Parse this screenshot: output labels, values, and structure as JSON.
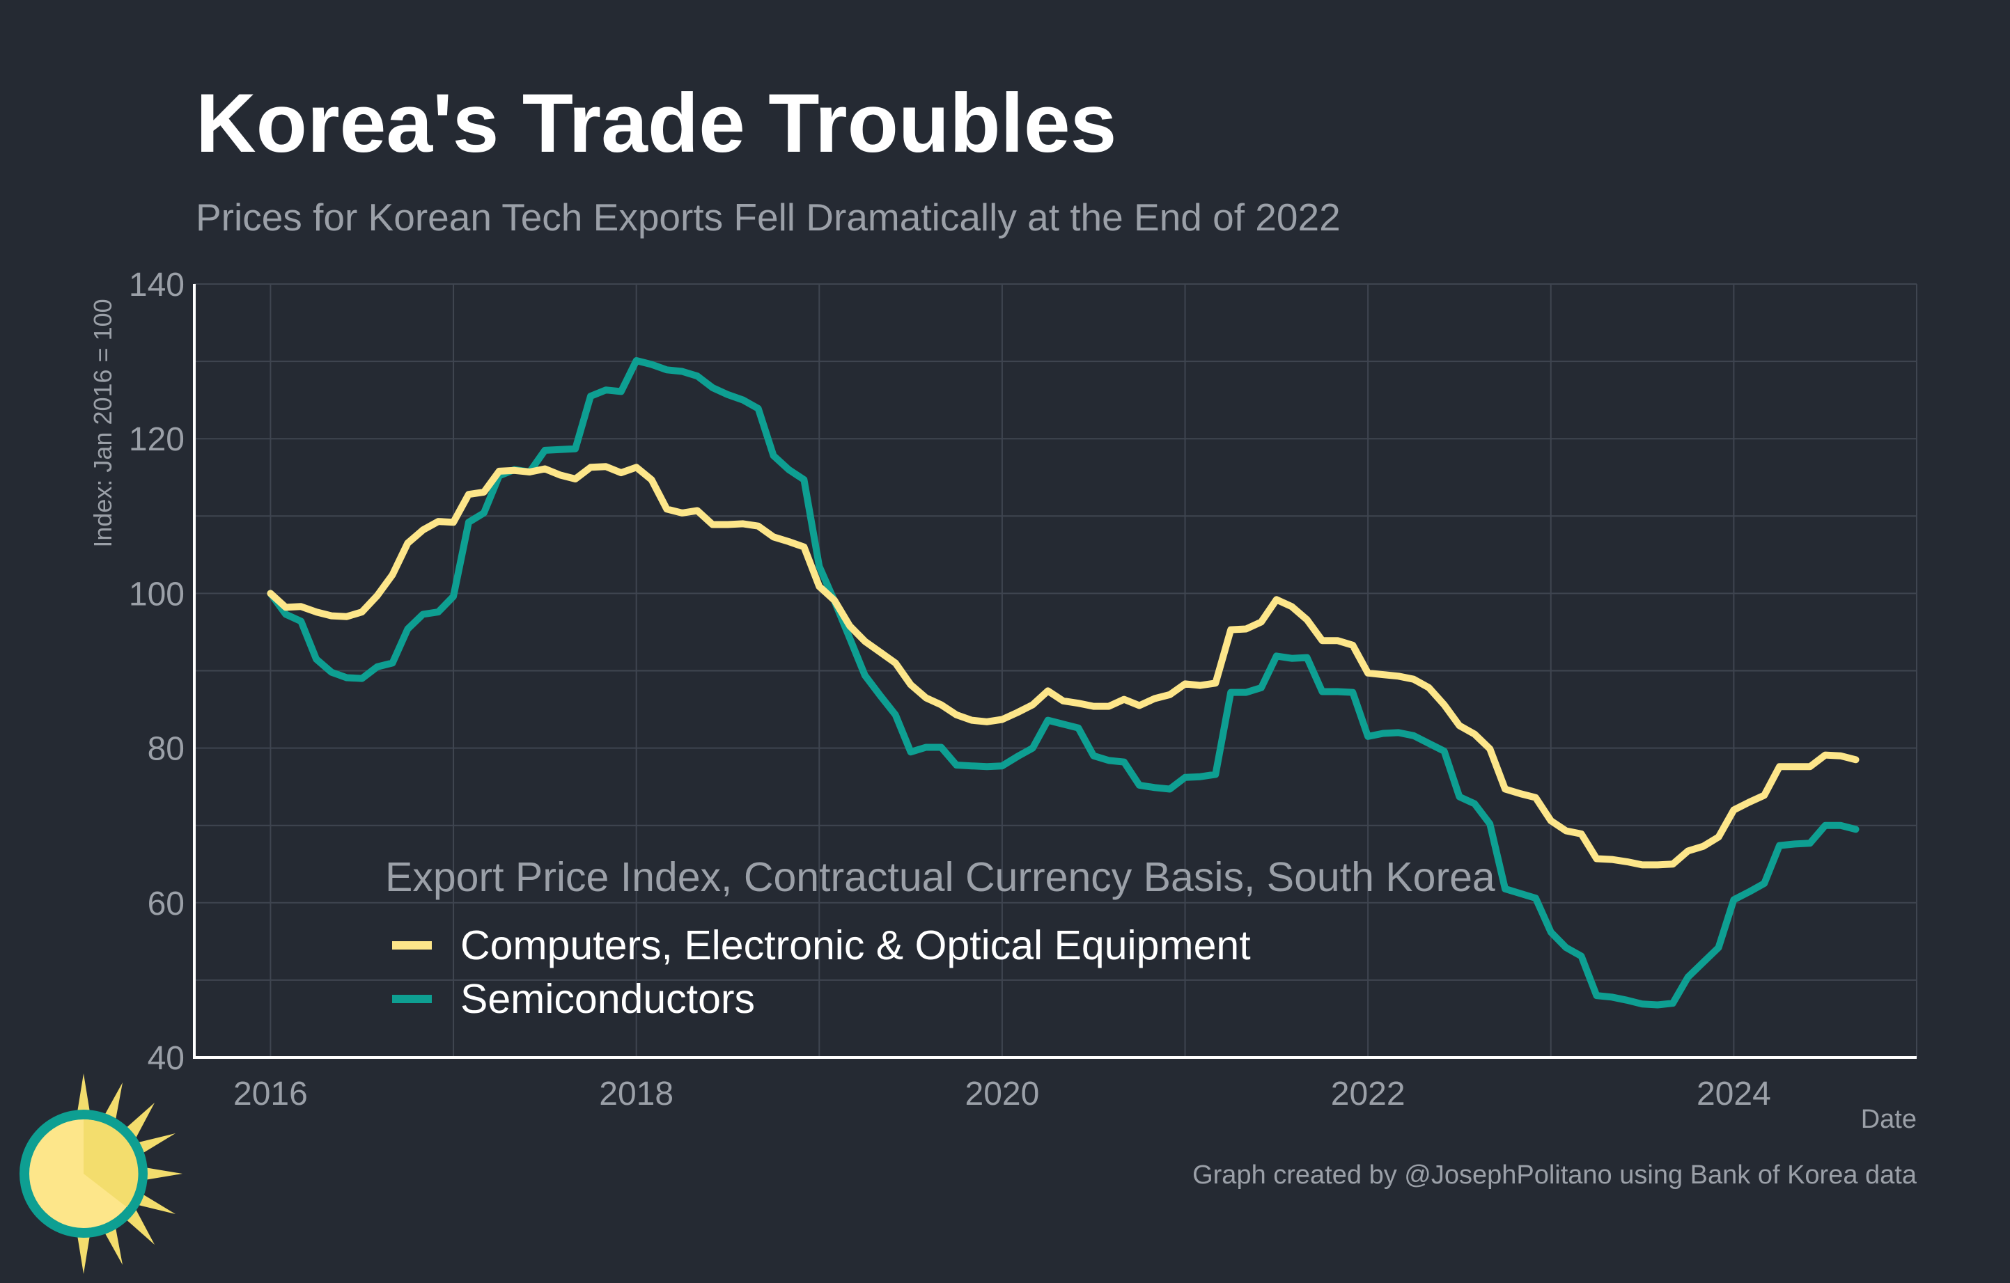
{
  "title": "Korea's Trade Troubles",
  "subtitle": "Prices for Korean Tech Exports Fell Dramatically at the End of 2022",
  "footer": {
    "date_label": "Date",
    "credit": "Graph created by @JosephPolitano using Bank of Korea data"
  },
  "colors": {
    "background": "#252a33",
    "grid": "#3f4550",
    "text_muted": "#9ba0a8",
    "computers": "#fde68a",
    "semiconductors": "#0e9f92"
  },
  "chart_data": {
    "type": "line",
    "title": "Korea's Trade Troubles",
    "subtitle": "Prices for Korean Tech Exports Fell Dramatically at the End of 2022",
    "xlabel": "Date",
    "ylabel": "Index: Jan 2016 = 100",
    "xlim": [
      "2015-08",
      "2025-01"
    ],
    "ylim": [
      40,
      140
    ],
    "x_ticks": [
      "2016",
      "2018",
      "2020",
      "2022",
      "2024"
    ],
    "y_ticks": [
      40,
      60,
      80,
      100,
      120,
      140
    ],
    "grid": true,
    "legend": {
      "title": "Export Price Index, Contractual Currency Basis, South Korea",
      "placement": "bottom-left"
    },
    "x": [
      "2016-01",
      "2016-02",
      "2016-03",
      "2016-04",
      "2016-05",
      "2016-06",
      "2016-07",
      "2016-08",
      "2016-09",
      "2016-10",
      "2016-11",
      "2016-12",
      "2017-01",
      "2017-02",
      "2017-03",
      "2017-04",
      "2017-05",
      "2017-06",
      "2017-07",
      "2017-08",
      "2017-09",
      "2017-10",
      "2017-11",
      "2017-12",
      "2018-01",
      "2018-02",
      "2018-03",
      "2018-04",
      "2018-05",
      "2018-06",
      "2018-07",
      "2018-08",
      "2018-09",
      "2018-10",
      "2018-11",
      "2018-12",
      "2019-01",
      "2019-02",
      "2019-03",
      "2019-04",
      "2019-05",
      "2019-06",
      "2019-07",
      "2019-08",
      "2019-09",
      "2019-10",
      "2019-11",
      "2019-12",
      "2020-01",
      "2020-02",
      "2020-03",
      "2020-04",
      "2020-05",
      "2020-06",
      "2020-07",
      "2020-08",
      "2020-09",
      "2020-10",
      "2020-11",
      "2020-12",
      "2021-01",
      "2021-02",
      "2021-03",
      "2021-04",
      "2021-05",
      "2021-06",
      "2021-07",
      "2021-08",
      "2021-09",
      "2021-10",
      "2021-11",
      "2021-12",
      "2022-01",
      "2022-02",
      "2022-03",
      "2022-04",
      "2022-05",
      "2022-06",
      "2022-07",
      "2022-08",
      "2022-09",
      "2022-10",
      "2022-11",
      "2022-12",
      "2023-01",
      "2023-02",
      "2023-03",
      "2023-04",
      "2023-05",
      "2023-06",
      "2023-07",
      "2023-08",
      "2023-09",
      "2023-10",
      "2023-11",
      "2023-12",
      "2024-01",
      "2024-02",
      "2024-03",
      "2024-04",
      "2024-05",
      "2024-06",
      "2024-07",
      "2024-08",
      "2024-09"
    ],
    "series": [
      {
        "name": "Computers, Electronic & Optical Equipment",
        "color": "#fde68a",
        "values": [
          100,
          98.2,
          98.3,
          97.6,
          97.1,
          97,
          97.6,
          99.7,
          102.4,
          106.5,
          108.2,
          109.3,
          109.2,
          112.8,
          113.1,
          115.8,
          115.9,
          115.7,
          116.1,
          115.3,
          114.8,
          116.3,
          116.4,
          115.6,
          116.3,
          114.7,
          110.9,
          110.4,
          110.7,
          108.9,
          108.9,
          109,
          108.7,
          107.3,
          106.7,
          106,
          100.9,
          99.1,
          95.8,
          93.8,
          92.4,
          91,
          88.2,
          86.5,
          85.6,
          84.3,
          83.6,
          83.4,
          83.7,
          84.6,
          85.6,
          87.4,
          86.1,
          85.8,
          85.4,
          85.4,
          86.3,
          85.5,
          86.4,
          86.9,
          88.3,
          88.1,
          88.4,
          95.3,
          95.4,
          96.3,
          99.2,
          98.3,
          96.6,
          93.9,
          93.9,
          93.3,
          89.7,
          89.5,
          89.3,
          88.9,
          87.8,
          85.6,
          82.9,
          81.8,
          79.9,
          74.7,
          74.1,
          73.6,
          70.6,
          69.3,
          68.9,
          65.7,
          65.6,
          65.3,
          64.9,
          64.9,
          65,
          66.7,
          67.3,
          68.5,
          72,
          73,
          73.9,
          77.6,
          77.6,
          77.6,
          79.1,
          79,
          78.5
        ]
      },
      {
        "name": "Semiconductors",
        "color": "#0e9f92",
        "values": [
          100,
          97.3,
          96.4,
          91.5,
          89.8,
          89.1,
          89,
          90.5,
          91,
          95.4,
          97.3,
          97.6,
          99.6,
          109.2,
          110.4,
          115.2,
          116,
          115.7,
          118.5,
          118.6,
          118.7,
          125.5,
          126.3,
          126.1,
          130.1,
          129.6,
          128.9,
          128.7,
          128.1,
          126.6,
          125.7,
          125,
          123.9,
          117.8,
          116,
          114.7,
          103.5,
          99,
          94.2,
          89.4,
          86.8,
          84.3,
          79.5,
          80.1,
          80.1,
          77.8,
          77.7,
          77.6,
          77.7,
          78.9,
          80,
          83.6,
          83.1,
          82.6,
          79,
          78.4,
          78.2,
          75.2,
          74.9,
          74.7,
          76.2,
          76.3,
          76.6,
          87.2,
          87.2,
          87.8,
          91.9,
          91.6,
          91.7,
          87.3,
          87.3,
          87.2,
          81.5,
          81.9,
          82,
          81.6,
          80.6,
          79.6,
          73.7,
          72.8,
          70.2,
          61.8,
          61.2,
          60.6,
          56.2,
          54.2,
          53.1,
          48,
          47.8,
          47.4,
          46.9,
          46.8,
          47,
          50.4,
          52.3,
          54.2,
          60.4,
          61.4,
          62.5,
          67.4,
          67.6,
          67.7,
          70,
          70,
          69.5
        ]
      }
    ]
  }
}
